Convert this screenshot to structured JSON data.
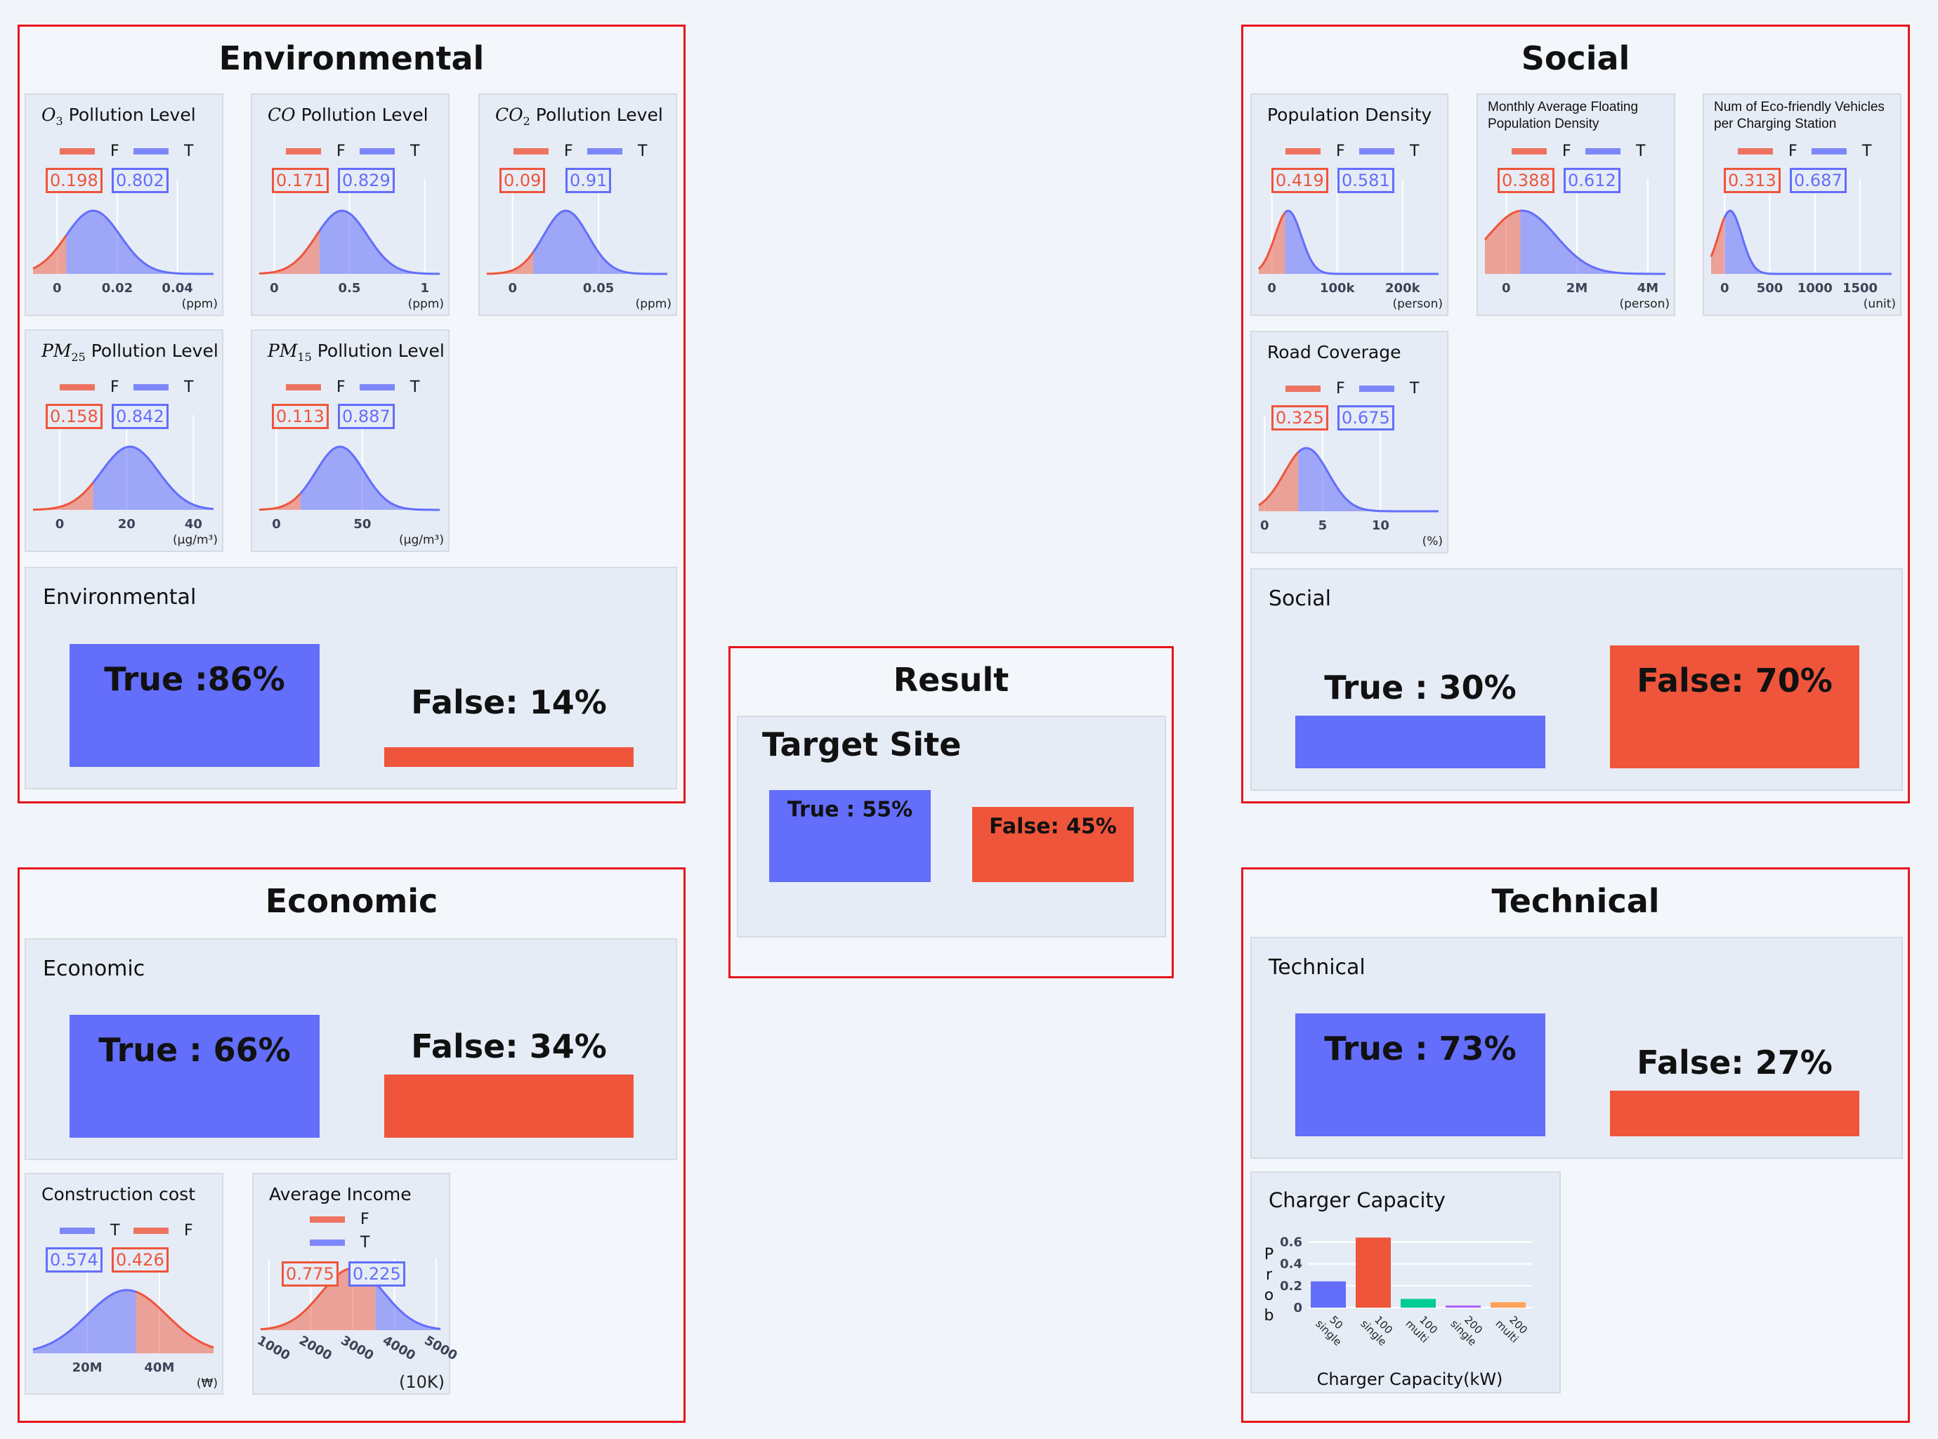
{
  "colors": {
    "true": "#636efa",
    "false": "#ef553b",
    "true_fill": "rgba(99,110,250,0.55)",
    "false_fill": "rgba(239,85,59,0.5)",
    "group_border": "#e8141c",
    "panel_bg": "#e6ecf5"
  },
  "environmental": {
    "title": "Environmental",
    "summary": {
      "title": "Environmental",
      "true_label": "True :86%",
      "false_label": "False: 14%",
      "true_value": 86,
      "false_value": 14
    },
    "cards": [
      {
        "sym": "O",
        "sub": "3",
        "title": "Pollution Level",
        "legend": [
          "F",
          "T"
        ],
        "values": [
          {
            "side": "F",
            "value": "0.198"
          },
          {
            "side": "T",
            "value": "0.802"
          }
        ],
        "unit": "(ppm)",
        "xrange": [
          -0.008,
          0.052
        ],
        "ticks": [
          {
            "v": 0,
            "label": "0"
          },
          {
            "v": 0.02,
            "label": "0.02"
          },
          {
            "v": 0.04,
            "label": "0.04"
          }
        ],
        "mean": 0.012,
        "sd": 0.009,
        "split": 0.003,
        "left": "F"
      },
      {
        "sym": "CO",
        "sub": "",
        "title": "Pollution Level",
        "legend": [
          "F",
          "T"
        ],
        "values": [
          {
            "side": "F",
            "value": "0.171"
          },
          {
            "side": "T",
            "value": "0.829"
          }
        ],
        "unit": "(ppm)",
        "xrange": [
          -0.1,
          1.1
        ],
        "ticks": [
          {
            "v": 0,
            "label": "0"
          },
          {
            "v": 0.5,
            "label": "0.5"
          },
          {
            "v": 1,
            "label": "1"
          }
        ],
        "mean": 0.45,
        "sd": 0.17,
        "split": 0.3,
        "left": "F"
      },
      {
        "sym": "CO",
        "sub": "2",
        "title": "Pollution Level",
        "legend": [
          "F",
          "T"
        ],
        "values": [
          {
            "side": "F",
            "value": "0.09"
          },
          {
            "side": "T",
            "value": "0.91"
          }
        ],
        "unit": "(ppm)",
        "xrange": [
          -0.015,
          0.09
        ],
        "ticks": [
          {
            "v": 0,
            "label": "0"
          },
          {
            "v": 0.05,
            "label": "0.05"
          }
        ],
        "mean": 0.031,
        "sd": 0.013,
        "split": 0.012,
        "left": "F"
      },
      {
        "sym": "PM",
        "sub": "25",
        "title": "Pollution Level",
        "legend": [
          "F",
          "T"
        ],
        "values": [
          {
            "side": "F",
            "value": "0.158"
          },
          {
            "side": "T",
            "value": "0.842"
          }
        ],
        "unit": "(μg/m³)",
        "xrange": [
          -8,
          46
        ],
        "ticks": [
          {
            "v": 0,
            "label": "0"
          },
          {
            "v": 20,
            "label": "20"
          },
          {
            "v": 40,
            "label": "40"
          }
        ],
        "mean": 21,
        "sd": 8.5,
        "split": 10,
        "left": "F"
      },
      {
        "sym": "PM",
        "sub": "15",
        "title": "Pollution Level",
        "legend": [
          "F",
          "T"
        ],
        "values": [
          {
            "side": "F",
            "value": "0.113"
          },
          {
            "side": "T",
            "value": "0.887"
          }
        ],
        "unit": "(μg/m³)",
        "xrange": [
          -10,
          95
        ],
        "ticks": [
          {
            "v": 0,
            "label": "0"
          },
          {
            "v": 50,
            "label": "50"
          }
        ],
        "mean": 37,
        "sd": 14,
        "split": 14,
        "left": "F"
      }
    ]
  },
  "social": {
    "title": "Social",
    "summary": {
      "title": "Social",
      "true_label": "True : 30%",
      "false_label": "False: 70%",
      "true_value": 30,
      "false_value": 70
    },
    "cards": [
      {
        "title": "Population Density",
        "legend": [
          "F",
          "T"
        ],
        "values": [
          {
            "side": "F",
            "value": "0.419"
          },
          {
            "side": "T",
            "value": "0.581"
          }
        ],
        "unit": "(person)",
        "xrange": [
          -20000,
          255000
        ],
        "ticks": [
          {
            "v": 0,
            "label": "0"
          },
          {
            "v": 100000,
            "label": "100k"
          },
          {
            "v": 200000,
            "label": "200k"
          }
        ],
        "mean": 25000,
        "sd": 20000,
        "split": 20000,
        "left": "F"
      },
      {
        "title": "Monthly Average Floating Population Density",
        "small": true,
        "legend": [
          "F",
          "T"
        ],
        "values": [
          {
            "side": "F",
            "value": "0.388"
          },
          {
            "side": "T",
            "value": "0.612"
          }
        ],
        "unit": "(person)",
        "xrange": [
          -600000,
          4500000
        ],
        "ticks": [
          {
            "v": 0,
            "label": "0"
          },
          {
            "v": 2000000,
            "label": "2M"
          },
          {
            "v": 4000000,
            "label": "4M"
          }
        ],
        "mean": 450000,
        "sd": 950000,
        "split": 400000,
        "left": "F"
      },
      {
        "title": "Num of Eco-friendly Vehicles per Charging Station",
        "small": true,
        "legend": [
          "F",
          "T"
        ],
        "values": [
          {
            "side": "F",
            "value": "0.313"
          },
          {
            "side": "T",
            "value": "0.687"
          }
        ],
        "unit": "(unit)",
        "xrange": [
          -150,
          1850
        ],
        "ticks": [
          {
            "v": 0,
            "label": "0"
          },
          {
            "v": 500,
            "label": "500"
          },
          {
            "v": 1000,
            "label": "1000"
          },
          {
            "v": 1500,
            "label": "1500"
          }
        ],
        "mean": 60,
        "sd": 130,
        "split": 0,
        "left": "F"
      },
      {
        "title": "Road Coverage",
        "legend": [
          "F",
          "T"
        ],
        "values": [
          {
            "side": "F",
            "value": "0.325"
          },
          {
            "side": "T",
            "value": "0.675"
          }
        ],
        "unit": "(%)",
        "xrange": [
          -0.5,
          15
        ],
        "ticks": [
          {
            "v": 0,
            "label": "0"
          },
          {
            "v": 5,
            "label": "5"
          },
          {
            "v": 10,
            "label": "10"
          }
        ],
        "mean": 3.6,
        "sd": 1.9,
        "split": 2.9,
        "left": "F"
      }
    ]
  },
  "result": {
    "title": "Result",
    "summary": {
      "title": "Target Site",
      "true_label": "True : 55%",
      "false_label": "False: 45%",
      "true_value": 55,
      "false_value": 45
    }
  },
  "economic": {
    "title": "Economic",
    "summary": {
      "title": "Economic",
      "true_label": "True : 66%",
      "false_label": "False: 34%",
      "true_value": 66,
      "false_value": 34
    },
    "cards": [
      {
        "title": "Construction cost",
        "legend": [
          "T",
          "F"
        ],
        "values": [
          {
            "side": "T",
            "value": "0.574"
          },
          {
            "side": "F",
            "value": "0.426"
          }
        ],
        "unit": "(₩)",
        "xrange": [
          5000000,
          55000000
        ],
        "ticks": [
          {
            "v": 20000000,
            "label": "20M"
          },
          {
            "v": 40000000,
            "label": "40M"
          }
        ],
        "mean": 31000000,
        "sd": 11000000,
        "split": 33500000,
        "left": "T"
      },
      {
        "title": "Average Income",
        "legend": [
          "F",
          "T"
        ],
        "stacked_legend": true,
        "values": [
          {
            "side": "F",
            "value": "0.775"
          },
          {
            "side": "T",
            "value": "0.225"
          }
        ],
        "unit": "(10K)",
        "xrange": [
          800,
          5100
        ],
        "ticks": [
          {
            "v": 1000,
            "label": "1000"
          },
          {
            "v": 2000,
            "label": "2000"
          },
          {
            "v": 3000,
            "label": "3000"
          },
          {
            "v": 4000,
            "label": "4000"
          },
          {
            "v": 5000,
            "label": "5000"
          }
        ],
        "rotated_ticks": true,
        "mean": 3000,
        "sd": 750,
        "split": 3550,
        "left": "F"
      }
    ]
  },
  "technical": {
    "title": "Technical",
    "summary": {
      "title": "Technical",
      "true_label": "True : 73%",
      "false_label": "False: 27%",
      "true_value": 73,
      "false_value": 27
    },
    "chart_data": {
      "type": "bar",
      "title": "Charger Capacity",
      "xlabel": "Charger Capacity(kW)",
      "ylabel": "Prob",
      "categories": [
        "50 single",
        "100 single",
        "100 multi",
        "200 single",
        "200 multi"
      ],
      "values": [
        0.24,
        0.64,
        0.08,
        0.02,
        0.05
      ],
      "bar_colors": [
        "#636efa",
        "#ef553b",
        "#00cc96",
        "#ab63fa",
        "#ffa15a"
      ],
      "yticks": [
        {
          "v": 0,
          "label": "0"
        },
        {
          "v": 0.2,
          "label": "0.2"
        },
        {
          "v": 0.4,
          "label": "0.4"
        },
        {
          "v": 0.6,
          "label": "0.6"
        }
      ],
      "ylim": [
        0,
        0.65
      ],
      "grid": true
    }
  }
}
